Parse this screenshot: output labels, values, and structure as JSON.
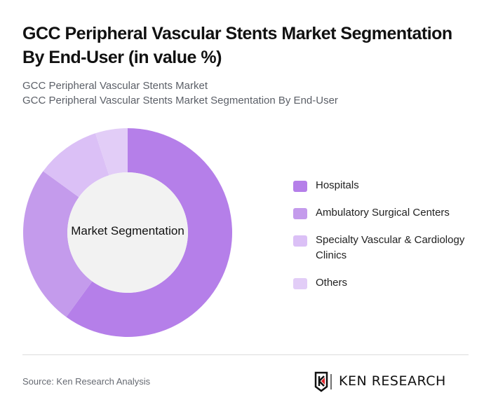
{
  "header": {
    "title": "GCC Peripheral Vascular Stents Market Segmentation By End-User (in value %)",
    "subtitle_line1": "GCC Peripheral Vascular Stents Market",
    "subtitle_line2": "GCC Peripheral Vascular Stents Market Segmentation By End-User"
  },
  "chart": {
    "center_label": "Market Segmentation"
  },
  "legend": {
    "items": [
      {
        "label": "Hospitals",
        "color": "#b57fe9"
      },
      {
        "label": "Ambulatory Surgical Centers",
        "color": "#c49bec"
      },
      {
        "label": "Specialty Vascular & Cardiology Clinics",
        "color": "#dbc0f6"
      },
      {
        "label": "Others",
        "color": "#e2cdf7"
      }
    ]
  },
  "footer": {
    "source": "Source: Ken Research Analysis",
    "logo_text": "KEN RESEARCH"
  },
  "chart_data": {
    "type": "pie",
    "subtype": "donut",
    "title": "GCC Peripheral Vascular Stents Market Segmentation By End-User (in value %)",
    "center_label": "Market Segmentation",
    "categories": [
      "Hospitals",
      "Ambulatory Surgical Centers",
      "Specialty Vascular & Cardiology Clinics",
      "Others"
    ],
    "values": [
      60,
      25,
      10,
      5
    ],
    "colors": [
      "#b57fe9",
      "#c49bec",
      "#dbc0f6",
      "#e2cdf7"
    ],
    "unit": "%",
    "start_angle": "12 o'clock, clockwise",
    "legend_position": "right",
    "data_labels": false
  }
}
